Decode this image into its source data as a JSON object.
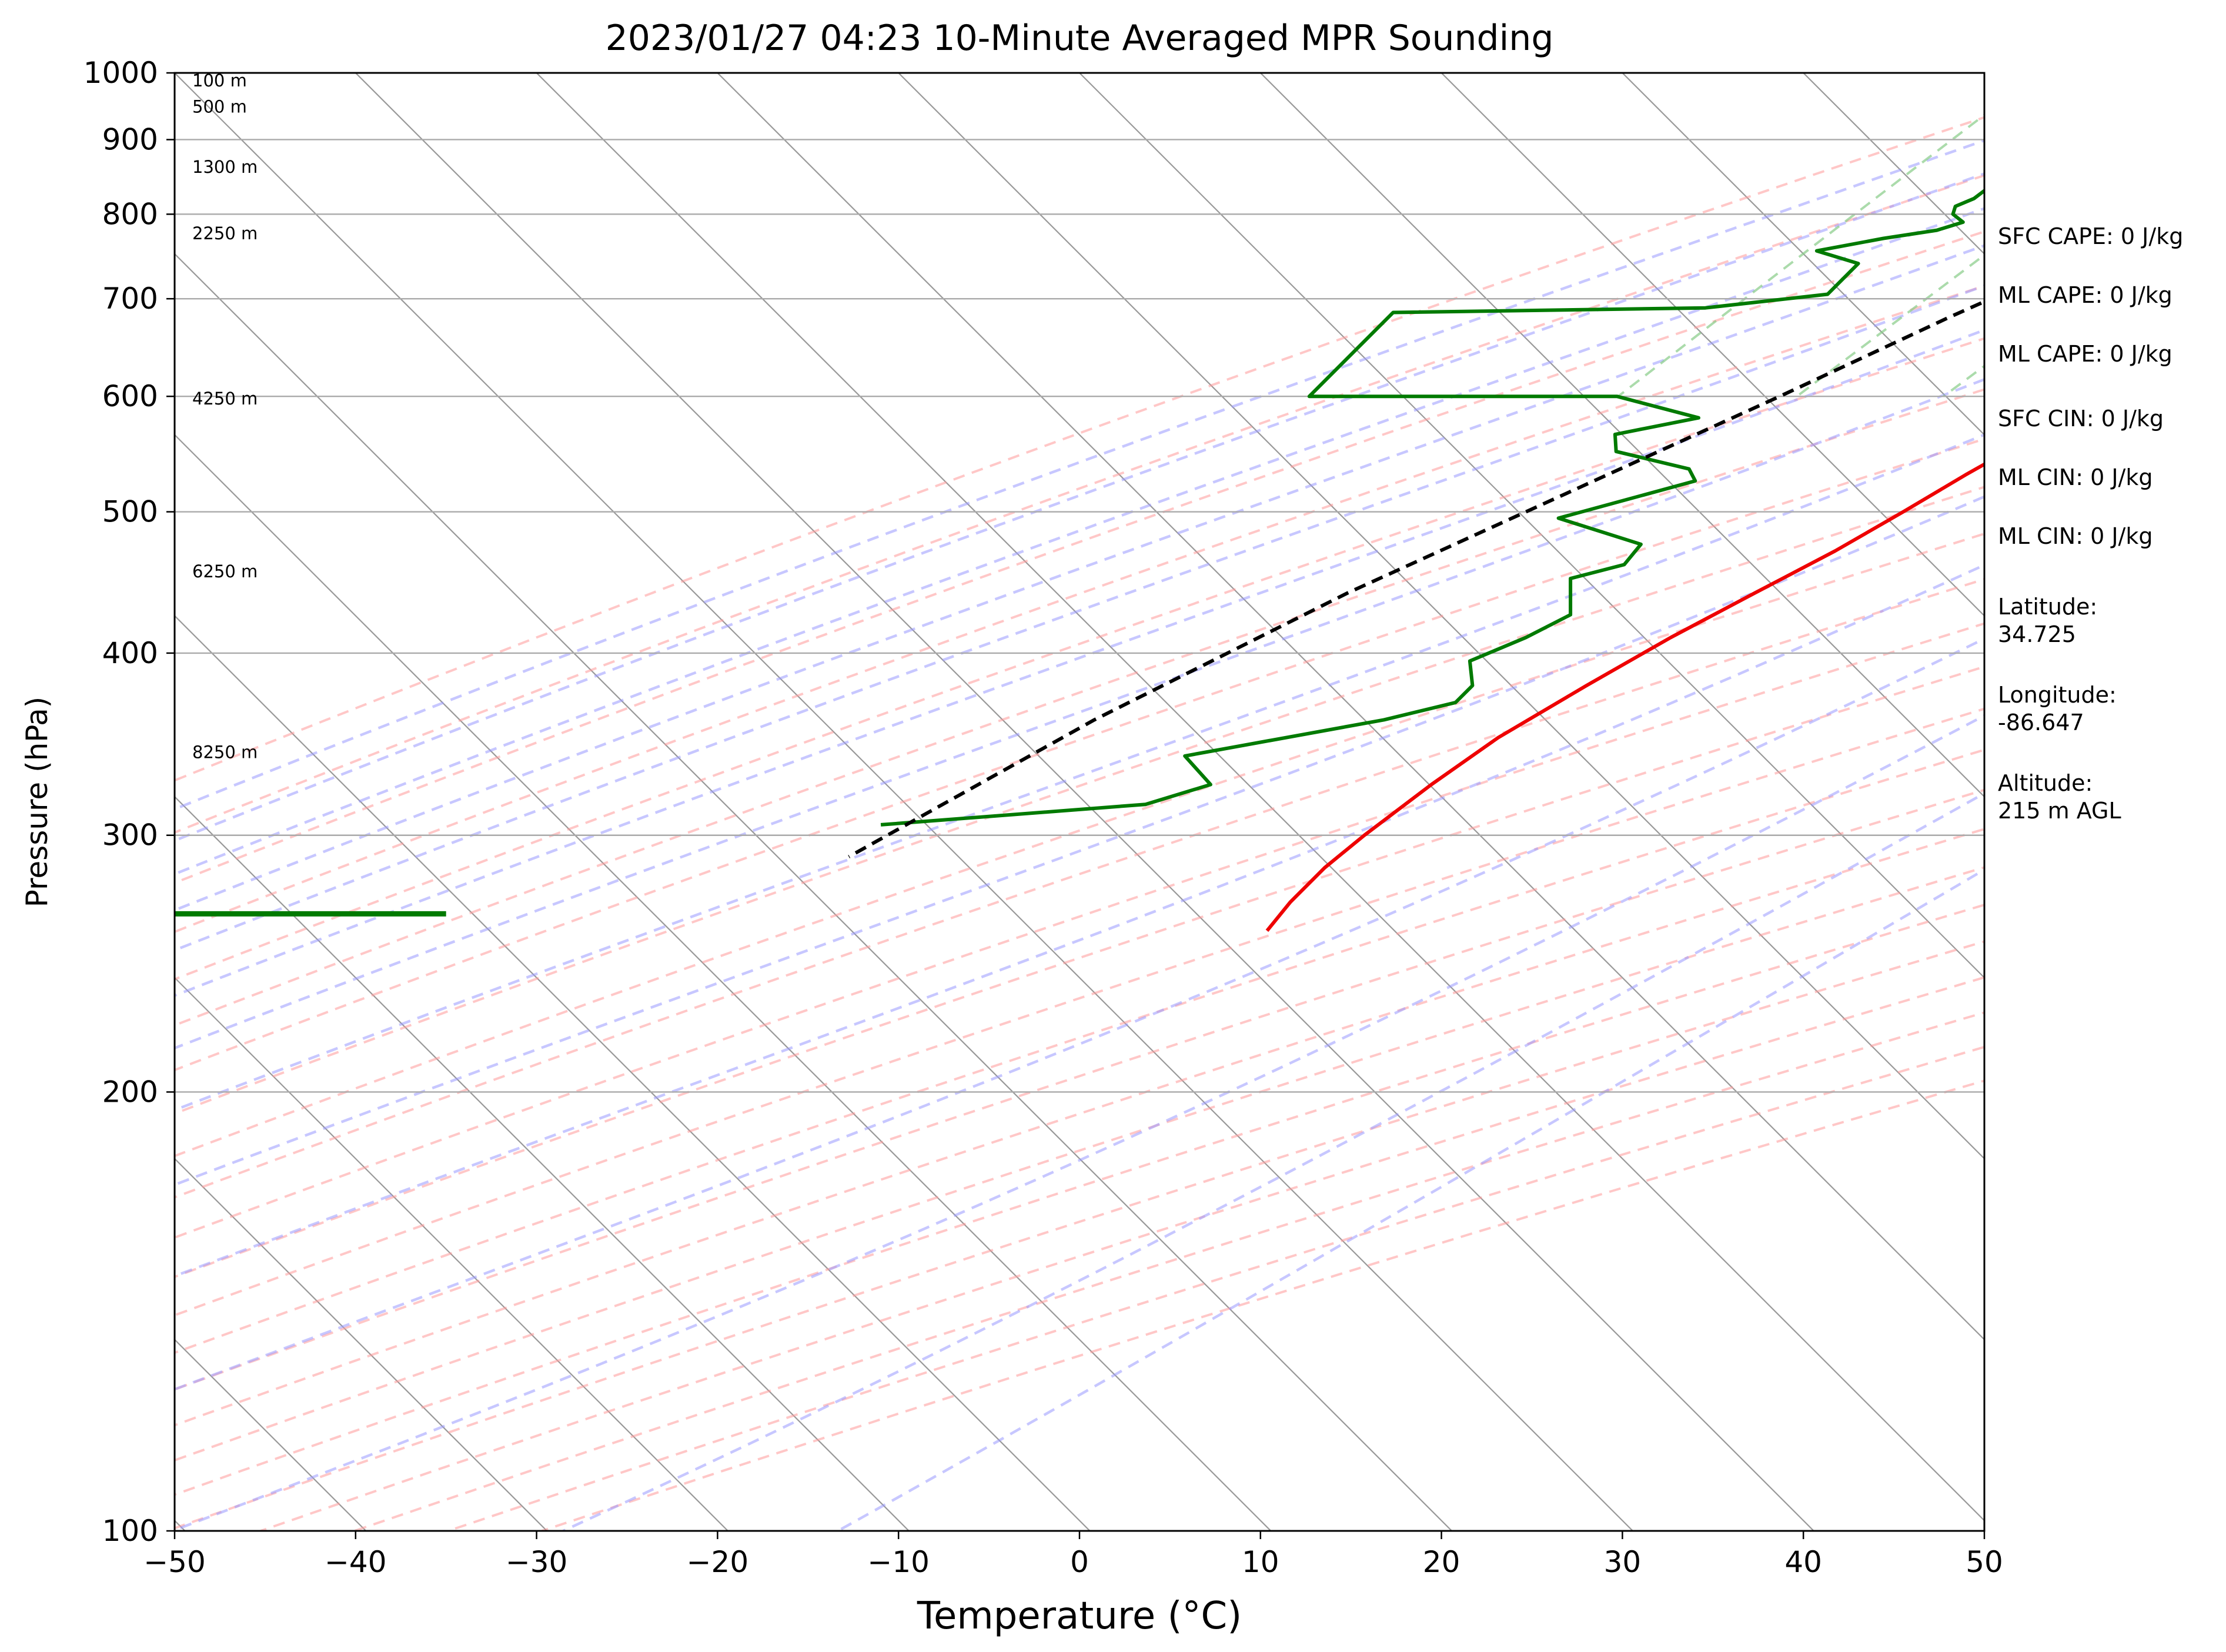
{
  "chart_data": {
    "type": "line",
    "title": "2023/01/27 04:23 10-Minute Averaged MPR Sounding",
    "xlabel": "Temperature (°C)",
    "ylabel": "Pressure (hPa)",
    "xlim": [
      -50,
      50
    ],
    "ylim": [
      1000,
      100
    ],
    "y_scale": "log",
    "x_ticks": [
      "−50",
      "−40",
      "−30",
      "−20",
      "−10",
      "0",
      "10",
      "20",
      "30",
      "40",
      "50"
    ],
    "x_tick_values": [
      -50,
      -40,
      -30,
      -20,
      -10,
      0,
      10,
      20,
      30,
      40,
      50
    ],
    "y_ticks": [
      "100",
      "200",
      "300",
      "400",
      "500",
      "600",
      "700",
      "800",
      "900",
      "1000"
    ],
    "y_tick_values": [
      100,
      200,
      300,
      400,
      500,
      600,
      700,
      800,
      900,
      1000
    ],
    "grid": true,
    "colors": {
      "temperature": "#ee0000",
      "dewpoint": "#007a00",
      "parcel": "#000000",
      "isotherm": "#999999",
      "dry_adiabat": "#ff9999",
      "moist_adiabat": "#9999ff",
      "mixing_ratio": "#88cc88"
    },
    "series": [
      {
        "key": "temperature",
        "x": [
          1.1,
          1.3,
          0.9,
          0.0,
          -1.5,
          -2.5,
          -3.0,
          -3.3,
          -3.5,
          -3.1,
          -3.1,
          -2.8,
          -2.9,
          -3.0,
          -3.1,
          -3.0,
          -3.2,
          -3.5,
          -4.2,
          -5.3,
          -6.6,
          -7.9,
          -9.4,
          -10.8,
          -12.4,
          -14.5,
          -16.7,
          -18.7,
          -20.7,
          -21.8,
          -22.7,
          -23.1,
          -23.1,
          -22.8
        ],
        "y": [
          1000,
          990,
          980,
          970,
          955,
          940,
          925,
          910,
          890,
          865,
          850,
          820,
          800,
          780,
          750,
          720,
          700,
          680,
          650,
          620,
          590,
          560,
          530,
          500,
          470,
          440,
          410,
          380,
          350,
          325,
          300,
          285,
          270,
          258
        ]
      },
      {
        "key": "dewpoint",
        "x": [
          -3.2,
          -5.0,
          -8.5,
          -10.5,
          -12.0,
          -14.5,
          -14.5,
          -18.0,
          -20.0,
          -21.0,
          -21.5,
          -22.0,
          -24.0,
          -24.5,
          -24.0,
          -24.2,
          -24.8,
          -24.5,
          -23.5,
          -24.5,
          -27.0,
          -30.0,
          -27.0,
          -27.0,
          -27.0,
          -33.0,
          -50.0,
          -50.0,
          -33.0,
          -27.3,
          -31.0,
          -30.0,
          -25.0,
          -24.0,
          -29.5,
          -23.5,
          -23.3,
          -25.5,
          -23.5,
          -24.7,
          -26.5,
          -25.0,
          -25.0,
          -28.0,
          -37.0,
          -34.0,
          -36.5,
          -50.0
        ],
        "y": [
          1000,
          995,
          985,
          975,
          965,
          950,
          940,
          925,
          910,
          890,
          880,
          870,
          860,
          850,
          835,
          820,
          810,
          800,
          790,
          780,
          770,
          755,
          740,
          720,
          705,
          690,
          685,
          600,
          600,
          580,
          565,
          550,
          535,
          525,
          495,
          475,
          460,
          450,
          425,
          410,
          395,
          380,
          370,
          360,
          340,
          325,
          315,
          305
        ]
      },
      {
        "key": "parcel",
        "x": [
          1.1,
          -2.0,
          -3.3,
          -8.0,
          -13.0,
          -19.0,
          -24.0,
          -30.0,
          -37.0,
          -44.0,
          -50.0
        ],
        "y": [
          1000,
          955,
          940,
          860,
          780,
          680,
          600,
          520,
          440,
          360,
          290
        ]
      }
    ],
    "wind_barb": {
      "pressure": 265,
      "x_start": -50.0,
      "x_end": -35.0
    },
    "height_labels": [
      {
        "text": "100 m",
        "p": 988
      },
      {
        "text": "500 m",
        "p": 948
      },
      {
        "text": "1300 m",
        "p": 862
      },
      {
        "text": "2250 m",
        "p": 776
      },
      {
        "text": "4250 m",
        "p": 598
      },
      {
        "text": "6250 m",
        "p": 455
      },
      {
        "text": "8250 m",
        "p": 342
      }
    ],
    "annotations": [
      {
        "lines": [
          "SFC CAPE: 0 J/kg"
        ]
      },
      {
        "lines": [
          "ML CAPE: 0 J/kg"
        ]
      },
      {
        "lines": [
          "ML CAPE: 0 J/kg"
        ]
      },
      {
        "lines": [
          "SFC CIN: 0 J/kg"
        ]
      },
      {
        "lines": [
          "ML CIN: 0 J/kg"
        ]
      },
      {
        "lines": [
          "ML CIN: 0 J/kg"
        ]
      },
      {
        "lines": [
          "Latitude:",
          "34.725"
        ]
      },
      {
        "lines": [
          "Longitude:",
          "-86.647"
        ]
      },
      {
        "lines": [
          "Altitude:",
          "215 m AGL"
        ]
      }
    ]
  }
}
